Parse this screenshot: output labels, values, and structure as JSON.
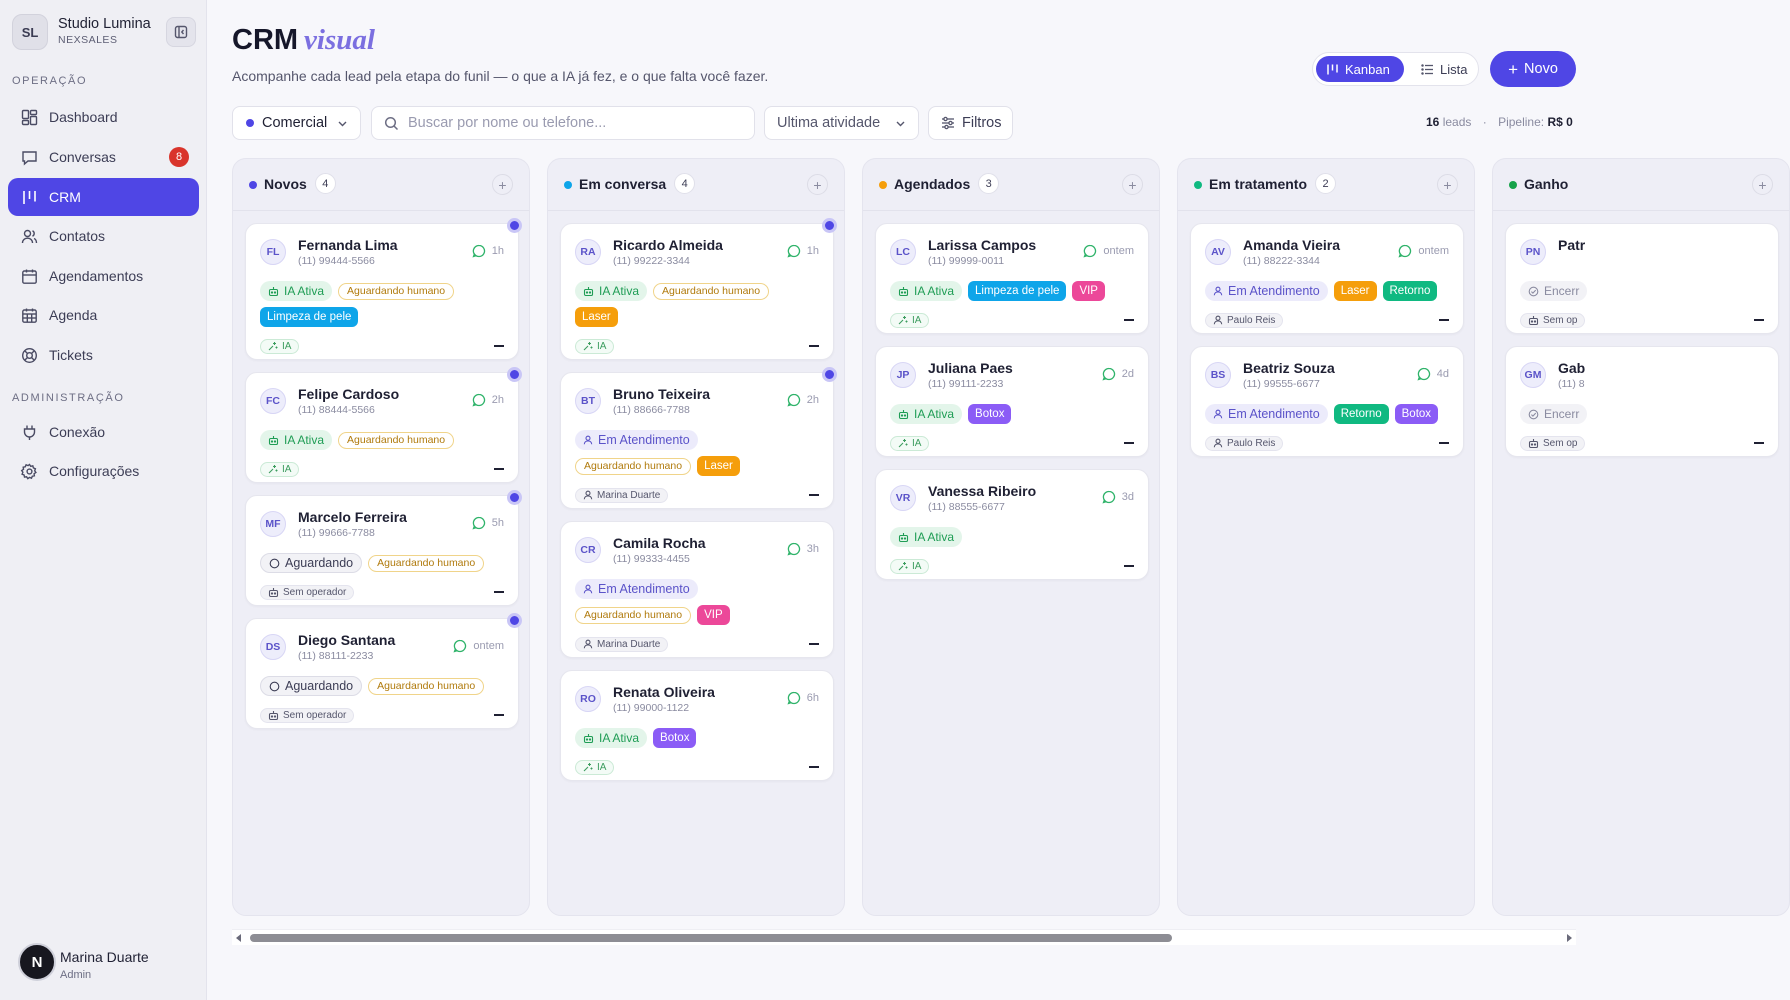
{
  "brand": {
    "initials": "SL",
    "name": "Studio Lumina",
    "subtitle": "NEXSALES"
  },
  "sidebar": {
    "sections": [
      {
        "label": "OPERAÇÃO"
      },
      {
        "label": "ADMINISTRAÇÃO"
      }
    ],
    "items": [
      {
        "label": "Dashboard",
        "icon": "dashboard-icon"
      },
      {
        "label": "Conversas",
        "icon": "chat-icon",
        "badge": "8"
      },
      {
        "label": "CRM",
        "icon": "kanban-icon",
        "active": true
      },
      {
        "label": "Contatos",
        "icon": "users-icon"
      },
      {
        "label": "Agendamentos",
        "icon": "calendar-icon"
      },
      {
        "label": "Agenda",
        "icon": "calendar-grid-icon"
      },
      {
        "label": "Tickets",
        "icon": "lifebuoy-icon"
      },
      {
        "label": "Conexão",
        "icon": "plug-icon"
      },
      {
        "label": "Configurações",
        "icon": "gear-icon"
      }
    ],
    "user": {
      "initial": "N",
      "name": "Marina Duarte",
      "role": "Admin"
    }
  },
  "header": {
    "title": "CRM",
    "title_accent": "visual",
    "subtitle": "Acompanhe cada lead pela etapa do funil — o que a IA já fez, e o que falta você fazer.",
    "view_kanban": "Kanban",
    "view_lista": "Lista",
    "new_button": "Novo"
  },
  "toolbar": {
    "pipeline": "Comercial",
    "search_placeholder": "Buscar por nome ou telefone...",
    "sort": "Ultima atividade",
    "filters": "Filtros",
    "leads_count": "16",
    "leads_label": "leads",
    "pipeline_label": "Pipeline:",
    "pipeline_value": "R$ 0"
  },
  "colors": {
    "accent": "#4f46e5",
    "badge_red": "#d9342b",
    "tag_limpeza": "#0ea5e9",
    "tag_laser": "#f59e0b",
    "tag_vip": "#ec4899",
    "tag_botox": "#8b5cf6",
    "tag_retorno": "#10b981"
  },
  "columns": [
    {
      "name": "Novos",
      "count": "4",
      "color": "#4f46e5",
      "cards": [
        {
          "initials": "FL",
          "name": "Fernanda Lima",
          "phone": "(11) 99444-5566",
          "time": "1h",
          "unread": true,
          "rows": [
            [
              {
                "t": "ia",
                "label": "IA Ativa"
              },
              {
                "t": "wait",
                "label": "Aguardando humano"
              }
            ],
            [
              {
                "t": "color",
                "label": "Limpeza de pele",
                "c": "#0ea5e9"
              }
            ]
          ],
          "footer": {
            "t": "ia",
            "label": "IA"
          }
        },
        {
          "initials": "FC",
          "name": "Felipe Cardoso",
          "phone": "(11) 88444-5566",
          "time": "2h",
          "unread": true,
          "rows": [
            [
              {
                "t": "ia",
                "label": "IA Ativa"
              },
              {
                "t": "wait",
                "label": "Aguardando humano"
              }
            ]
          ],
          "footer": {
            "t": "ia",
            "label": "IA"
          }
        },
        {
          "initials": "MF",
          "name": "Marcelo Ferreira",
          "phone": "(11) 99666-7788",
          "time": "5h",
          "unread": true,
          "rows": [
            [
              {
                "t": "aguard",
                "label": "Aguardando"
              },
              {
                "t": "wait",
                "label": "Aguardando humano"
              }
            ]
          ],
          "footer": {
            "t": "op",
            "label": "Sem operador",
            "icon": "robot"
          }
        },
        {
          "initials": "DS",
          "name": "Diego Santana",
          "phone": "(11) 88111-2233",
          "time": "ontem",
          "unread": true,
          "rows": [
            [
              {
                "t": "aguard",
                "label": "Aguardando"
              },
              {
                "t": "wait",
                "label": "Aguardando humano"
              }
            ]
          ],
          "footer": {
            "t": "op",
            "label": "Sem operador",
            "icon": "robot"
          }
        }
      ]
    },
    {
      "name": "Em conversa",
      "count": "4",
      "color": "#0ea5e9",
      "cards": [
        {
          "initials": "RA",
          "name": "Ricardo Almeida",
          "phone": "(11) 99222-3344",
          "time": "1h",
          "unread": true,
          "rows": [
            [
              {
                "t": "ia",
                "label": "IA Ativa"
              },
              {
                "t": "wait",
                "label": "Aguardando humano"
              }
            ],
            [
              {
                "t": "color",
                "label": "Laser",
                "c": "#f59e0b"
              }
            ]
          ],
          "footer": {
            "t": "ia",
            "label": "IA"
          }
        },
        {
          "initials": "BT",
          "name": "Bruno Teixeira",
          "phone": "(11) 88666-7788",
          "time": "2h",
          "unread": true,
          "rows": [
            [
              {
                "t": "atend",
                "label": "Em Atendimento"
              }
            ],
            [
              {
                "t": "wait",
                "label": "Aguardando humano"
              },
              {
                "t": "color",
                "label": "Laser",
                "c": "#f59e0b"
              }
            ]
          ],
          "footer": {
            "t": "op",
            "label": "Marina Duarte",
            "icon": "user"
          }
        },
        {
          "initials": "CR",
          "name": "Camila Rocha",
          "phone": "(11) 99333-4455",
          "time": "3h",
          "unread": false,
          "rows": [
            [
              {
                "t": "atend",
                "label": "Em Atendimento"
              }
            ],
            [
              {
                "t": "wait",
                "label": "Aguardando humano"
              },
              {
                "t": "color",
                "label": "VIP",
                "c": "#ec4899"
              }
            ]
          ],
          "footer": {
            "t": "op",
            "label": "Marina Duarte",
            "icon": "user"
          }
        },
        {
          "initials": "RO",
          "name": "Renata Oliveira",
          "phone": "(11) 99000-1122",
          "time": "6h",
          "unread": false,
          "rows": [
            [
              {
                "t": "ia",
                "label": "IA Ativa"
              },
              {
                "t": "color",
                "label": "Botox",
                "c": "#8b5cf6"
              }
            ]
          ],
          "footer": {
            "t": "ia",
            "label": "IA"
          }
        }
      ]
    },
    {
      "name": "Agendados",
      "count": "3",
      "color": "#f59e0b",
      "cards": [
        {
          "initials": "LC",
          "name": "Larissa Campos",
          "phone": "(11) 99999-0011",
          "time": "ontem",
          "unread": false,
          "rows": [
            [
              {
                "t": "ia",
                "label": "IA Ativa"
              },
              {
                "t": "color",
                "label": "Limpeza de pele",
                "c": "#0ea5e9"
              },
              {
                "t": "color",
                "label": "VIP",
                "c": "#ec4899"
              }
            ]
          ],
          "footer": {
            "t": "ia",
            "label": "IA"
          }
        },
        {
          "initials": "JP",
          "name": "Juliana Paes",
          "phone": "(11) 99111-2233",
          "time": "2d",
          "unread": false,
          "rows": [
            [
              {
                "t": "ia",
                "label": "IA Ativa"
              },
              {
                "t": "color",
                "label": "Botox",
                "c": "#8b5cf6"
              }
            ]
          ],
          "footer": {
            "t": "ia",
            "label": "IA"
          }
        },
        {
          "initials": "VR",
          "name": "Vanessa Ribeiro",
          "phone": "(11) 88555-6677",
          "time": "3d",
          "unread": false,
          "rows": [
            [
              {
                "t": "ia",
                "label": "IA Ativa"
              }
            ]
          ],
          "footer": {
            "t": "ia",
            "label": "IA"
          }
        }
      ]
    },
    {
      "name": "Em tratamento",
      "count": "2",
      "color": "#10b981",
      "cards": [
        {
          "initials": "AV",
          "name": "Amanda Vieira",
          "phone": "(11) 88222-3344",
          "time": "ontem",
          "unread": false,
          "rows": [
            [
              {
                "t": "atend",
                "label": "Em Atendimento"
              },
              {
                "t": "color",
                "label": "Laser",
                "c": "#f59e0b"
              },
              {
                "t": "color",
                "label": "Retorno",
                "c": "#10b981"
              }
            ]
          ],
          "footer": {
            "t": "op",
            "label": "Paulo Reis",
            "icon": "user"
          }
        },
        {
          "initials": "BS",
          "name": "Beatriz Souza",
          "phone": "(11) 99555-6677",
          "time": "4d",
          "unread": false,
          "rows": [
            [
              {
                "t": "atend",
                "label": "Em Atendimento"
              },
              {
                "t": "color",
                "label": "Retorno",
                "c": "#10b981"
              },
              {
                "t": "color",
                "label": "Botox",
                "c": "#8b5cf6"
              }
            ]
          ],
          "footer": {
            "t": "op",
            "label": "Paulo Reis",
            "icon": "user"
          }
        }
      ]
    },
    {
      "name": "Ganho",
      "count": "",
      "color": "#16a34a",
      "cards": [
        {
          "initials": "PN",
          "name": "Patr",
          "phone": "",
          "time": "",
          "unread": false,
          "rows": [
            [
              {
                "t": "encer",
                "label": "Encerr"
              }
            ]
          ],
          "footer": {
            "t": "op",
            "label": "Sem op",
            "icon": "robot"
          }
        },
        {
          "initials": "GM",
          "name": "Gab",
          "phone": "(11) 8",
          "time": "",
          "unread": false,
          "rows": [
            [
              {
                "t": "encer",
                "label": "Encerr"
              }
            ]
          ],
          "footer": {
            "t": "op",
            "label": "Sem op",
            "icon": "robot"
          }
        }
      ]
    }
  ]
}
